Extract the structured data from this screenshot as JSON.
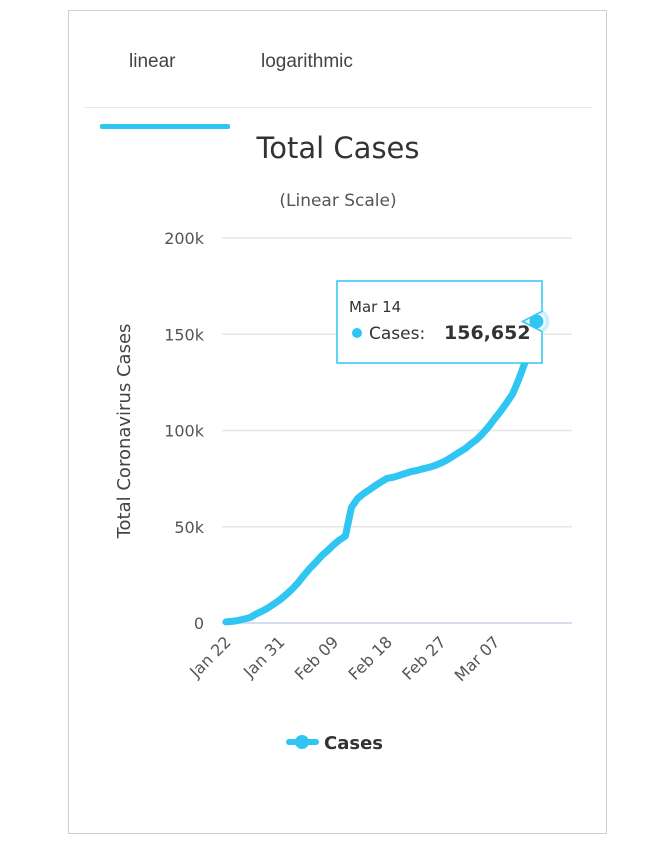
{
  "tabs": [
    {
      "label": "linear",
      "active": true
    },
    {
      "label": "logarithmic",
      "active": false
    }
  ],
  "accent_color": "#2fc6f3",
  "chart_data": {
    "type": "line",
    "title": "Total Cases",
    "subtitle": "(Linear Scale)",
    "xlabel": "",
    "ylabel": "Total Coronavirus Cases",
    "ylim": [
      0,
      200000
    ],
    "y_ticks": [
      0,
      50000,
      100000,
      150000,
      200000
    ],
    "y_tick_labels": [
      "0",
      "50k",
      "100k",
      "150k",
      "200k"
    ],
    "x_tick_labels": [
      "Jan 22",
      "Jan 31",
      "Feb 09",
      "Feb 18",
      "Feb 27",
      "Mar 07"
    ],
    "grid": true,
    "legend": {
      "position": "bottom-center"
    },
    "series": [
      {
        "name": "Cases",
        "color": "#2fc6f3",
        "x": [
          "Jan 22",
          "Jan 23",
          "Jan 24",
          "Jan 25",
          "Jan 26",
          "Jan 27",
          "Jan 28",
          "Jan 29",
          "Jan 30",
          "Jan 31",
          "Feb 01",
          "Feb 02",
          "Feb 03",
          "Feb 04",
          "Feb 05",
          "Feb 06",
          "Feb 07",
          "Feb 08",
          "Feb 09",
          "Feb 10",
          "Feb 11",
          "Feb 12",
          "Feb 13",
          "Feb 14",
          "Feb 15",
          "Feb 16",
          "Feb 17",
          "Feb 18",
          "Feb 19",
          "Feb 20",
          "Feb 21",
          "Feb 22",
          "Feb 23",
          "Feb 24",
          "Feb 25",
          "Feb 26",
          "Feb 27",
          "Feb 28",
          "Feb 29",
          "Mar 01",
          "Mar 02",
          "Mar 03",
          "Mar 04",
          "Mar 05",
          "Mar 06",
          "Mar 07",
          "Mar 08",
          "Mar 09",
          "Mar 10",
          "Mar 11",
          "Mar 12",
          "Mar 13",
          "Mar 14"
        ],
        "values": [
          580,
          845,
          1317,
          2015,
          2800,
          4581,
          6058,
          7813,
          9821,
          11948,
          14551,
          17389,
          20628,
          24553,
          28276,
          31439,
          34876,
          37552,
          40553,
          43099,
          45134,
          60000,
          64543,
          67100,
          69197,
          71329,
          73332,
          75184,
          75700,
          76677,
          77673,
          78651,
          79205,
          80087,
          80828,
          81820,
          83112,
          84615,
          86604,
          88585,
          90443,
          93016,
          95314,
          98425,
          102050,
          106099,
          109991,
          114381,
          118948,
          126214,
          134576,
          145483,
          156652
        ]
      }
    ],
    "tooltip": {
      "date": "Mar 14",
      "series": "Cases",
      "value_label": "156,652"
    }
  }
}
